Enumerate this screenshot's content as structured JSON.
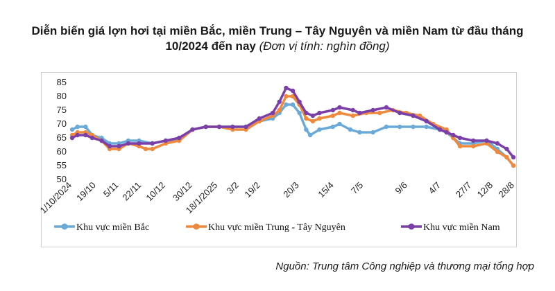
{
  "title": {
    "main": "Diễn biến giá lợn hơi tại miền Bắc, miền Trung – Tây Nguyên và miền Nam từ đầu tháng 10/2024 đến nay",
    "unit": "(Đơn vị tính: nghìn đồng)"
  },
  "source": "Nguồn: Trung tâm Công nghiệp và thương mại tổng hợp",
  "colors": {
    "bac": "#6aaad8",
    "trung": "#ef8a3c",
    "nam": "#7a3fa8"
  },
  "chart_data": {
    "type": "line",
    "title": "Diễn biến giá lợn hơi tại miền Bắc, miền Trung – Tây Nguyên và miền Nam từ đầu tháng 10/2024 đến nay",
    "ylabel": "",
    "ylim": [
      50,
      85
    ],
    "yticks": [
      50,
      55,
      60,
      65,
      70,
      75,
      80,
      85
    ],
    "xlim": [
      0,
      330
    ],
    "xticks": [
      {
        "label": "1/10/2024",
        "x": 0
      },
      {
        "label": "19/10",
        "x": 18
      },
      {
        "label": "5/11",
        "x": 35
      },
      {
        "label": "22/11",
        "x": 52
      },
      {
        "label": "10/12",
        "x": 70
      },
      {
        "label": "30/12",
        "x": 90
      },
      {
        "label": "18/1/2025",
        "x": 109
      },
      {
        "label": "3/2",
        "x": 125
      },
      {
        "label": "19/2",
        "x": 141
      },
      {
        "label": "20/3",
        "x": 170
      },
      {
        "label": "15/4",
        "x": 196
      },
      {
        "label": "7/5",
        "x": 218
      },
      {
        "label": "9/6",
        "x": 251
      },
      {
        "label": "4/7",
        "x": 276
      },
      {
        "label": "27/7",
        "x": 299
      },
      {
        "label": "12/8",
        "x": 315
      },
      {
        "label": "28/8",
        "x": 331
      }
    ],
    "legend_position": "bottom",
    "series": [
      {
        "name": "Khu vực miền Bắc",
        "points": [
          [
            0,
            68
          ],
          [
            4,
            69
          ],
          [
            10,
            69
          ],
          [
            15,
            66
          ],
          [
            22,
            65
          ],
          [
            28,
            63
          ],
          [
            35,
            63
          ],
          [
            42,
            64
          ],
          [
            50,
            64
          ],
          [
            60,
            63
          ],
          [
            70,
            64
          ],
          [
            80,
            64
          ],
          [
            90,
            68
          ],
          [
            100,
            69
          ],
          [
            110,
            69
          ],
          [
            120,
            69
          ],
          [
            130,
            69
          ],
          [
            140,
            71
          ],
          [
            150,
            72
          ],
          [
            155,
            74
          ],
          [
            160,
            77
          ],
          [
            165,
            77
          ],
          [
            170,
            74
          ],
          [
            175,
            68
          ],
          [
            178,
            66
          ],
          [
            185,
            68
          ],
          [
            195,
            69
          ],
          [
            200,
            70
          ],
          [
            208,
            68
          ],
          [
            215,
            67
          ],
          [
            225,
            67
          ],
          [
            235,
            69
          ],
          [
            245,
            69
          ],
          [
            255,
            69
          ],
          [
            265,
            69
          ],
          [
            275,
            68
          ],
          [
            280,
            67
          ],
          [
            285,
            65
          ],
          [
            290,
            63
          ],
          [
            300,
            63
          ],
          [
            310,
            64
          ],
          [
            318,
            61
          ],
          [
            325,
            58
          ],
          [
            330,
            55
          ]
        ]
      },
      {
        "name": "Khu vực miền Trung - Tây Nguyên",
        "points": [
          [
            0,
            66
          ],
          [
            4,
            67
          ],
          [
            10,
            67
          ],
          [
            15,
            66
          ],
          [
            22,
            64
          ],
          [
            28,
            61
          ],
          [
            35,
            61
          ],
          [
            42,
            63
          ],
          [
            50,
            62
          ],
          [
            55,
            61
          ],
          [
            60,
            61
          ],
          [
            70,
            63
          ],
          [
            80,
            64
          ],
          [
            90,
            68
          ],
          [
            100,
            69
          ],
          [
            110,
            69
          ],
          [
            120,
            68
          ],
          [
            130,
            68
          ],
          [
            140,
            71
          ],
          [
            150,
            73
          ],
          [
            155,
            75
          ],
          [
            160,
            80
          ],
          [
            165,
            80
          ],
          [
            170,
            77
          ],
          [
            175,
            72
          ],
          [
            180,
            71
          ],
          [
            185,
            72
          ],
          [
            195,
            73
          ],
          [
            200,
            74
          ],
          [
            210,
            73
          ],
          [
            220,
            74
          ],
          [
            230,
            74
          ],
          [
            240,
            75
          ],
          [
            250,
            74
          ],
          [
            260,
            73
          ],
          [
            270,
            70
          ],
          [
            280,
            68
          ],
          [
            285,
            65
          ],
          [
            290,
            62
          ],
          [
            300,
            62
          ],
          [
            310,
            63
          ],
          [
            318,
            60
          ],
          [
            325,
            58
          ],
          [
            330,
            55
          ]
        ]
      },
      {
        "name": "Khu vực miền Nam",
        "points": [
          [
            0,
            65
          ],
          [
            4,
            66
          ],
          [
            10,
            66
          ],
          [
            15,
            65
          ],
          [
            22,
            64
          ],
          [
            28,
            62
          ],
          [
            35,
            62
          ],
          [
            42,
            63
          ],
          [
            50,
            63
          ],
          [
            60,
            63
          ],
          [
            70,
            64
          ],
          [
            80,
            65
          ],
          [
            90,
            68
          ],
          [
            100,
            69
          ],
          [
            110,
            69
          ],
          [
            120,
            69
          ],
          [
            130,
            69
          ],
          [
            140,
            72
          ],
          [
            150,
            74
          ],
          [
            155,
            78
          ],
          [
            160,
            83
          ],
          [
            165,
            82
          ],
          [
            170,
            78
          ],
          [
            175,
            74
          ],
          [
            180,
            73
          ],
          [
            185,
            74
          ],
          [
            195,
            75
          ],
          [
            200,
            76
          ],
          [
            210,
            75
          ],
          [
            215,
            74
          ],
          [
            225,
            75
          ],
          [
            235,
            76
          ],
          [
            245,
            74
          ],
          [
            255,
            73
          ],
          [
            265,
            71
          ],
          [
            275,
            68
          ],
          [
            280,
            67
          ],
          [
            285,
            66
          ],
          [
            290,
            65
          ],
          [
            300,
            64
          ],
          [
            310,
            64
          ],
          [
            318,
            63
          ],
          [
            325,
            61
          ],
          [
            330,
            58
          ]
        ]
      }
    ]
  }
}
